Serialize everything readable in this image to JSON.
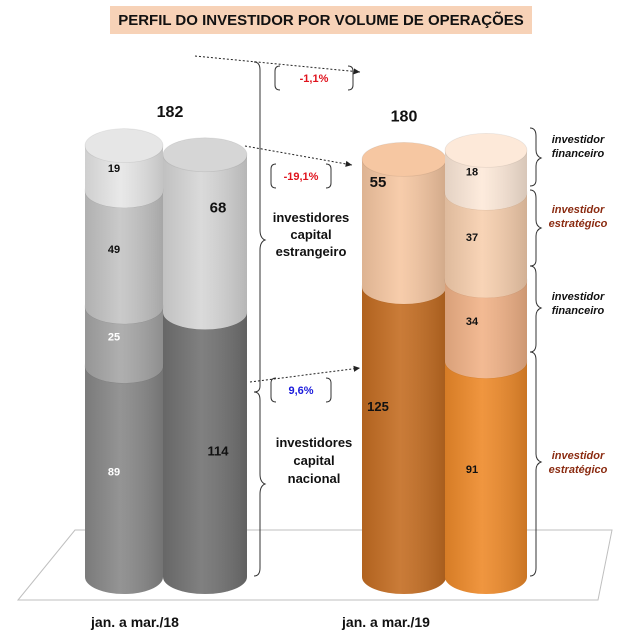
{
  "chart_data": {
    "type": "bar",
    "title": "PERFIL DO INVESTIDOR POR VOLUME DE OPERAÇÕES",
    "categories": [
      "jan. a mar./18",
      "jan. a mar./19"
    ],
    "totals": [
      182,
      180
    ],
    "groups": [
      {
        "name": "investidores capital estrangeiro",
        "values": [
          68,
          55
        ]
      },
      {
        "name": "investidores capital nacional",
        "values": [
          114,
          125
        ]
      }
    ],
    "series": [
      {
        "name": "investidor financeiro",
        "group": "investidores capital estrangeiro",
        "values": [
          19,
          18
        ]
      },
      {
        "name": "investidor estratégico",
        "group": "investidores capital estrangeiro",
        "values": [
          49,
          37
        ]
      },
      {
        "name": "investidor financeiro",
        "group": "investidores capital nacional",
        "values": [
          25,
          34
        ]
      },
      {
        "name": "investidor estratégico",
        "group": "investidores capital nacional",
        "values": [
          89,
          91
        ]
      }
    ],
    "changes": [
      {
        "label": "-1,1%",
        "color": "#e0141e"
      },
      {
        "label": "-19,1%",
        "color": "#e0141e"
      },
      {
        "label": "9,6%",
        "color": "#1a1adc"
      }
    ],
    "colors": {
      "year1_front": [
        "#e6e6e6",
        "#c4c4c4",
        "#a6a6a6",
        "#888888"
      ],
      "year1_back": [
        "#d6d6d6",
        "#727272"
      ],
      "year2_front": [
        "#fde9d9",
        "#f7cfae",
        "#f1b287",
        "#ee8a2a"
      ],
      "year2_back": [
        "#f6c7a2",
        "#c46d22"
      ],
      "financial_label": "#111111",
      "strategic_label": "#8b2c12"
    }
  }
}
